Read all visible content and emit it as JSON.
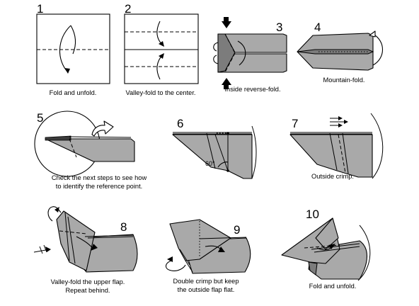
{
  "steps": [
    {
      "number": "1",
      "caption": [
        "Fold and unfold."
      ]
    },
    {
      "number": "2",
      "caption": [
        "Valley-fold to the center."
      ]
    },
    {
      "number": "3",
      "caption": [
        "Inside reverse-fold."
      ]
    },
    {
      "number": "4",
      "caption": [
        "Mountain-fold."
      ]
    },
    {
      "number": "5",
      "caption": [
        "Check the next steps to see how",
        "to identify the reference point."
      ]
    },
    {
      "number": "6",
      "caption": [],
      "angle_label": "60°"
    },
    {
      "number": "7",
      "caption": [
        "Outside crimp."
      ]
    },
    {
      "number": "8",
      "caption": [
        "Valley-fold the upper flap.",
        "Repeat behind."
      ]
    },
    {
      "number": "9",
      "caption": [
        "Double crimp but keep",
        "the outside flap flat."
      ]
    },
    {
      "number": "10",
      "caption": [
        "Fold and unfold."
      ]
    }
  ]
}
